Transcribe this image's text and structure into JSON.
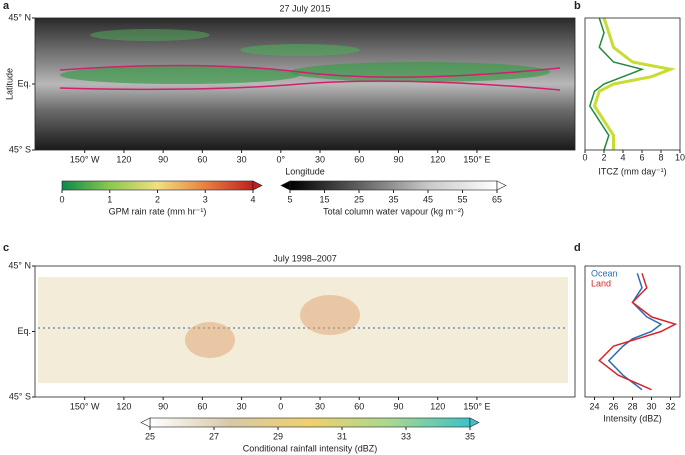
{
  "chart_data": [
    {
      "type": "map",
      "panel_label": "a",
      "title": "27 July 2015",
      "xlabel": "Longitude",
      "ylabel": "Latitude",
      "xlim": [
        -188,
        225
      ],
      "ylim": [
        -45,
        45
      ],
      "xticks": [
        {
          "value": -150,
          "label": "150° W"
        },
        {
          "value": -120,
          "label": "120"
        },
        {
          "value": -90,
          "label": "90"
        },
        {
          "value": -60,
          "label": "60"
        },
        {
          "value": -30,
          "label": "30"
        },
        {
          "value": 0,
          "label": "0°"
        },
        {
          "value": 30,
          "label": "30"
        },
        {
          "value": 60,
          "label": "60"
        },
        {
          "value": 90,
          "label": "90"
        },
        {
          "value": 120,
          "label": "120"
        },
        {
          "value": 150,
          "label": "150° E"
        }
      ],
      "yticks": [
        {
          "value": -45,
          "label": "45° S"
        },
        {
          "value": 0,
          "label": "Eq."
        },
        {
          "value": 45,
          "label": "45° N"
        }
      ],
      "colorbars": [
        {
          "label": "GPM rain rate (mm hr⁻¹)",
          "lim": [
            0,
            4
          ],
          "ticks": [
            0,
            1,
            2,
            3,
            4
          ],
          "colors": [
            "#0a8a4a",
            "#8cc850",
            "#f0e080",
            "#e88040",
            "#c02020"
          ],
          "extend": "max"
        },
        {
          "label": "Total column water vapour (kg m⁻²)",
          "lim": [
            5,
            65
          ],
          "ticks": [
            5,
            15,
            25,
            35,
            45,
            55,
            65
          ],
          "colors": [
            "#000000",
            "#606060",
            "#c8c8c8",
            "#ffffff"
          ],
          "extend": "both"
        }
      ]
    },
    {
      "type": "line",
      "panel_label": "b",
      "xlabel": "ITCZ (mm day⁻¹)",
      "y": [
        45,
        35,
        25,
        15,
        10,
        5,
        0,
        -5,
        -15,
        -25,
        -35,
        -45
      ],
      "xlim": [
        0,
        10
      ],
      "ylim": [
        -45,
        45
      ],
      "xticks": [
        0,
        2,
        4,
        6,
        8,
        10
      ],
      "series": [
        {
          "color": "#c8dc32",
          "values": [
            2,
            2.5,
            3,
            5,
            9,
            7,
            3,
            1.5,
            1,
            2,
            3,
            3
          ]
        },
        {
          "color": "#1f8a3c",
          "values": [
            1.5,
            2,
            1.5,
            3,
            6,
            4,
            2,
            1,
            0.5,
            1.5,
            2.5,
            2
          ]
        }
      ]
    },
    {
      "type": "map",
      "panel_label": "c",
      "title": "July 1998–2007",
      "xlim": [
        -188,
        225
      ],
      "ylim": [
        -45,
        45
      ],
      "xticks": [
        {
          "value": -150,
          "label": "150° W"
        },
        {
          "value": -120,
          "label": "120"
        },
        {
          "value": -90,
          "label": "90"
        },
        {
          "value": -60,
          "label": "60"
        },
        {
          "value": -30,
          "label": "30"
        },
        {
          "value": 0,
          "label": "0"
        },
        {
          "value": 30,
          "label": "30"
        },
        {
          "value": 60,
          "label": "60"
        },
        {
          "value": 90,
          "label": "90"
        },
        {
          "value": 120,
          "label": "120"
        },
        {
          "value": 150,
          "label": "150° E"
        }
      ],
      "yticks": [
        {
          "value": -45,
          "label": "45° S"
        },
        {
          "value": 0,
          "label": "Eq."
        },
        {
          "value": 45,
          "label": "45° N"
        }
      ],
      "colorbars": [
        {
          "label": "Conditional rainfall intensity (dBZ)",
          "lim": [
            25,
            35
          ],
          "ticks": [
            25,
            27,
            29,
            31,
            33,
            35
          ],
          "colors": [
            "#ffffff",
            "#d8c8a8",
            "#f0d070",
            "#a8d890",
            "#40c0c8"
          ],
          "extend": "both"
        }
      ]
    },
    {
      "type": "line",
      "panel_label": "d",
      "xlabel": "Intensity (dBZ)",
      "y": [
        40,
        30,
        20,
        10,
        5,
        0,
        -5,
        -10,
        -20,
        -30,
        -40
      ],
      "xlim": [
        23,
        33
      ],
      "ylim": [
        -45,
        45
      ],
      "xticks": [
        24,
        26,
        28,
        30,
        32
      ],
      "legend": "upper left",
      "series": [
        {
          "name": "Ocean",
          "color": "#2b6cb8",
          "values": [
            28.5,
            29,
            28,
            29.5,
            31,
            30,
            28,
            27,
            25.5,
            27,
            29
          ]
        },
        {
          "name": "Land",
          "color": "#d6262b",
          "values": [
            29,
            29.5,
            28,
            30,
            32.5,
            31,
            28.5,
            26,
            24.5,
            26.5,
            30
          ]
        }
      ]
    }
  ]
}
